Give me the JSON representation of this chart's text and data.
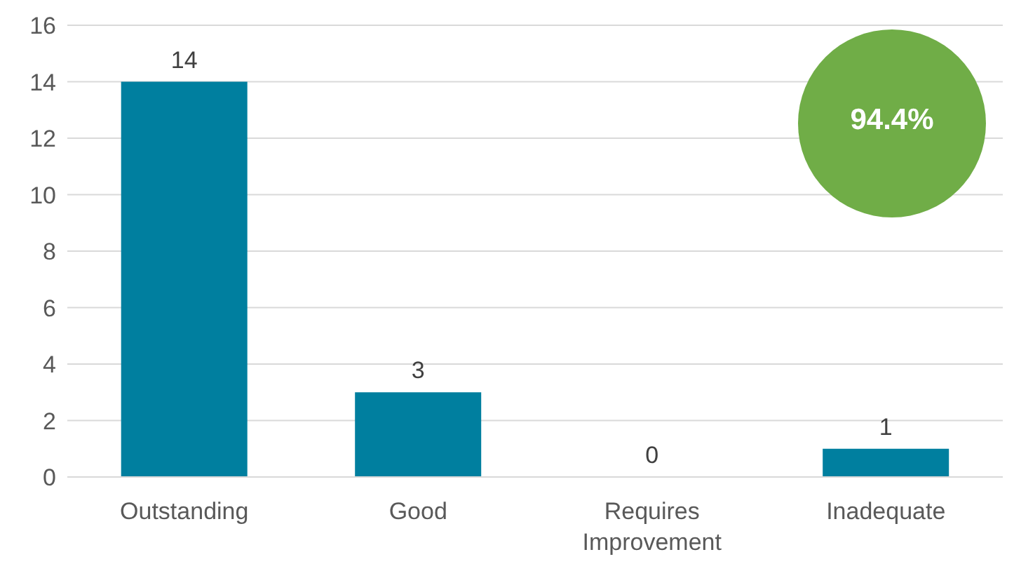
{
  "chart_data": {
    "type": "bar",
    "categories": [
      "Outstanding",
      "Good",
      "Requires Improvement",
      "Inadequate"
    ],
    "values": [
      14,
      3,
      0,
      1
    ],
    "color": "#007f9f",
    "ylim": [
      0,
      16
    ],
    "yticks": [
      0,
      2,
      4,
      6,
      8,
      10,
      12,
      14,
      16
    ],
    "grid": "y",
    "data_labels": true,
    "annotations": [
      "94.4%"
    ]
  }
}
